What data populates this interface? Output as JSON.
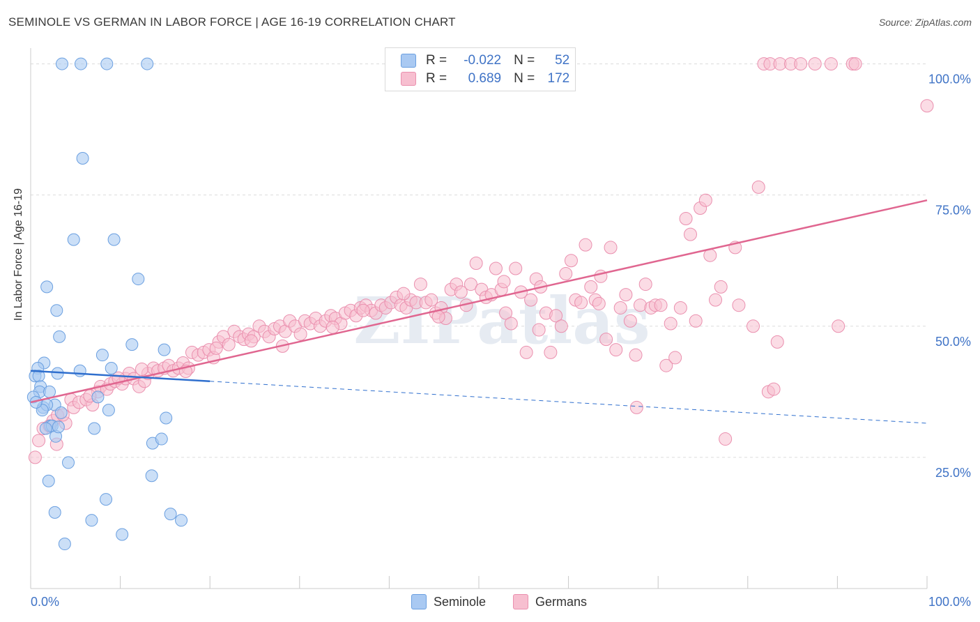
{
  "title": "SEMINOLE VS GERMAN IN LABOR FORCE | AGE 16-19 CORRELATION CHART",
  "source": "Source: ZipAtlas.com",
  "watermark": "ZIPatlas",
  "legend": {
    "rows": [
      {
        "name": "Seminole",
        "r_label": "R =",
        "r": "-0.022",
        "n_label": "N =",
        "n": "52"
      },
      {
        "name": "Germans",
        "r_label": "R =",
        "r": "0.689",
        "n_label": "N =",
        "n": "172"
      }
    ]
  },
  "colors": {
    "seminole_fill": "#a9c9f2",
    "seminole_stroke": "#6a9fe0",
    "seminole_line": "#2f6fce",
    "germans_fill": "#f7bfd0",
    "germans_stroke": "#ea8fae",
    "germans_line": "#e06690",
    "value_text": "#3f73c6"
  },
  "chart_data": {
    "type": "scatter",
    "title": "SEMINOLE VS GERMAN IN LABOR FORCE | AGE 16-19 CORRELATION CHART",
    "xlabel": "",
    "ylabel": "In Labor Force | Age 16-19",
    "xlim": [
      0,
      100
    ],
    "ylim": [
      0,
      103
    ],
    "x_tick_labels": [
      "0.0%",
      "100.0%"
    ],
    "y_tick_labels": [
      "25.0%",
      "50.0%",
      "75.0%",
      "100.0%"
    ],
    "y_ticks": [
      25,
      50,
      75,
      100
    ],
    "grid": true,
    "legend_position": "top-center",
    "series": [
      {
        "name": "Seminole",
        "r": -0.022,
        "n": 52,
        "trend": {
          "x": [
            0,
            20
          ],
          "y": [
            41.5,
            39.5
          ],
          "dashed_to_x": 100,
          "dashed_end_y": 31.5
        },
        "points": [
          [
            3.5,
            100
          ],
          [
            5.6,
            100
          ],
          [
            8.5,
            100
          ],
          [
            13,
            100
          ],
          [
            5.8,
            82
          ],
          [
            4.8,
            66.5
          ],
          [
            9.3,
            66.5
          ],
          [
            1.8,
            57.5
          ],
          [
            12,
            59
          ],
          [
            2.9,
            53
          ],
          [
            3.2,
            48
          ],
          [
            11.3,
            46.5
          ],
          [
            8,
            44.5
          ],
          [
            14.9,
            45.5
          ],
          [
            1.5,
            43
          ],
          [
            0.8,
            42
          ],
          [
            0.5,
            40.5
          ],
          [
            0.9,
            40.5
          ],
          [
            3,
            41
          ],
          [
            5.5,
            41.5
          ],
          [
            9,
            42
          ],
          [
            1.1,
            38.5
          ],
          [
            1,
            37.5
          ],
          [
            2.1,
            37.5
          ],
          [
            0.3,
            36.5
          ],
          [
            2.7,
            35
          ],
          [
            1.4,
            34.5
          ],
          [
            1.8,
            35
          ],
          [
            1.3,
            34
          ],
          [
            8.7,
            34
          ],
          [
            3.4,
            33.5
          ],
          [
            15.1,
            32.5
          ],
          [
            2.2,
            31
          ],
          [
            2.4,
            31
          ],
          [
            1.7,
            30.5
          ],
          [
            7.1,
            30.5
          ],
          [
            2.8,
            29
          ],
          [
            13.6,
            27.7
          ],
          [
            14.6,
            28.5
          ],
          [
            4.2,
            24
          ],
          [
            13.5,
            21.5
          ],
          [
            2,
            20.5
          ],
          [
            8.4,
            17
          ],
          [
            2.7,
            14.5
          ],
          [
            6.8,
            13
          ],
          [
            15.6,
            14.2
          ],
          [
            16.8,
            13
          ],
          [
            10.2,
            10.3
          ],
          [
            3.8,
            8.5
          ],
          [
            7.5,
            36.5
          ],
          [
            0.6,
            35.5
          ],
          [
            3.1,
            30.8
          ]
        ]
      },
      {
        "name": "Germans",
        "r": 0.689,
        "n": 172,
        "trend": {
          "x": [
            0,
            100
          ],
          "y": [
            35.5,
            74
          ]
        },
        "points": [
          [
            81.8,
            100
          ],
          [
            82.5,
            100
          ],
          [
            83.6,
            100
          ],
          [
            84.8,
            100
          ],
          [
            85.9,
            100
          ],
          [
            87.5,
            100
          ],
          [
            89.3,
            100
          ],
          [
            91.7,
            100
          ],
          [
            92,
            100
          ],
          [
            100,
            92
          ],
          [
            0.5,
            25
          ],
          [
            0.9,
            28.2
          ],
          [
            2.9,
            27.5
          ],
          [
            1.4,
            30.5
          ],
          [
            2.1,
            31
          ],
          [
            2.5,
            32
          ],
          [
            3,
            33
          ],
          [
            3.9,
            31.5
          ],
          [
            4.5,
            36
          ],
          [
            4.8,
            34.5
          ],
          [
            5.4,
            35.5
          ],
          [
            6.2,
            36
          ],
          [
            6.9,
            35
          ],
          [
            7.5,
            37.5
          ],
          [
            7.8,
            38.5
          ],
          [
            8.5,
            38
          ],
          [
            8.9,
            39
          ],
          [
            9.4,
            39.5
          ],
          [
            10.2,
            39
          ],
          [
            10.6,
            40
          ],
          [
            11,
            41
          ],
          [
            11.5,
            40
          ],
          [
            12.1,
            38.5
          ],
          [
            12.7,
            39.5
          ],
          [
            13.1,
            41
          ],
          [
            13.7,
            42
          ],
          [
            14.2,
            41.5
          ],
          [
            14.9,
            42
          ],
          [
            15.4,
            42.5
          ],
          [
            15.9,
            41.5
          ],
          [
            16.5,
            42
          ],
          [
            17,
            43
          ],
          [
            17.6,
            42
          ],
          [
            18,
            45
          ],
          [
            18.7,
            44.5
          ],
          [
            19.3,
            45
          ],
          [
            19.9,
            45.5
          ],
          [
            20.4,
            44
          ],
          [
            21,
            47
          ],
          [
            21.5,
            48
          ],
          [
            22.1,
            46.5
          ],
          [
            22.7,
            49
          ],
          [
            23.3,
            48
          ],
          [
            23.8,
            47.5
          ],
          [
            24.3,
            48.5
          ],
          [
            24.9,
            48
          ],
          [
            25.5,
            50
          ],
          [
            26.1,
            49
          ],
          [
            26.6,
            48
          ],
          [
            27.2,
            49.5
          ],
          [
            27.8,
            50
          ],
          [
            28.4,
            49
          ],
          [
            28.9,
            51
          ],
          [
            29.5,
            50
          ],
          [
            30.1,
            48.5
          ],
          [
            30.6,
            51
          ],
          [
            31.2,
            50.5
          ],
          [
            31.8,
            51.5
          ],
          [
            32.3,
            50
          ],
          [
            32.9,
            51
          ],
          [
            33.5,
            52
          ],
          [
            34,
            51.5
          ],
          [
            34.6,
            50.5
          ],
          [
            35.1,
            52.5
          ],
          [
            35.7,
            53
          ],
          [
            36.3,
            52
          ],
          [
            36.8,
            53.5
          ],
          [
            37.4,
            54
          ],
          [
            38,
            53
          ],
          [
            38.5,
            52.5
          ],
          [
            39.1,
            54
          ],
          [
            39.6,
            53.5
          ],
          [
            40.2,
            54.5
          ],
          [
            40.8,
            55.5
          ],
          [
            41.3,
            54
          ],
          [
            41.9,
            53.5
          ],
          [
            42.4,
            55
          ],
          [
            43,
            54.5
          ],
          [
            43.5,
            58
          ],
          [
            44.1,
            54.5
          ],
          [
            44.7,
            55
          ],
          [
            45.2,
            52.5
          ],
          [
            45.8,
            53.5
          ],
          [
            46.3,
            51.5
          ],
          [
            46.9,
            57
          ],
          [
            47.5,
            58
          ],
          [
            48,
            56.5
          ],
          [
            48.6,
            54
          ],
          [
            49.1,
            58
          ],
          [
            49.7,
            62
          ],
          [
            50.3,
            57
          ],
          [
            50.8,
            55.5
          ],
          [
            51.4,
            56
          ],
          [
            51.9,
            61
          ],
          [
            52.5,
            57
          ],
          [
            53,
            52.5
          ],
          [
            53.6,
            50.5
          ],
          [
            54.1,
            61
          ],
          [
            54.7,
            56.5
          ],
          [
            55.3,
            45
          ],
          [
            55.8,
            55
          ],
          [
            56.4,
            59
          ],
          [
            56.9,
            57.5
          ],
          [
            57.5,
            52.5
          ],
          [
            58,
            45
          ],
          [
            58.6,
            52
          ],
          [
            59.2,
            50
          ],
          [
            59.7,
            60
          ],
          [
            60.3,
            62.5
          ],
          [
            60.8,
            55
          ],
          [
            61.4,
            54.5
          ],
          [
            61.9,
            65.5
          ],
          [
            62.5,
            57.5
          ],
          [
            63,
            55
          ],
          [
            63.6,
            59.5
          ],
          [
            64.2,
            47.5
          ],
          [
            64.7,
            65
          ],
          [
            65.3,
            45.5
          ],
          [
            65.8,
            53.5
          ],
          [
            66.4,
            56
          ],
          [
            66.9,
            51
          ],
          [
            67.5,
            44.5
          ],
          [
            68,
            54
          ],
          [
            68.6,
            58
          ],
          [
            69.2,
            53.5
          ],
          [
            69.7,
            54
          ],
          [
            70.3,
            54
          ],
          [
            70.9,
            42.5
          ],
          [
            71.4,
            50.5
          ],
          [
            71.9,
            44
          ],
          [
            72.5,
            53.5
          ],
          [
            73.1,
            70.5
          ],
          [
            73.6,
            67.5
          ],
          [
            74.2,
            51
          ],
          [
            74.7,
            72.5
          ],
          [
            75.3,
            74
          ],
          [
            75.8,
            63.5
          ],
          [
            76.4,
            55
          ],
          [
            77,
            57.5
          ],
          [
            77.5,
            28.5
          ],
          [
            78.6,
            65
          ],
          [
            79,
            54
          ],
          [
            80.6,
            50
          ],
          [
            81.2,
            76.5
          ],
          [
            82.3,
            37.5
          ],
          [
            82.9,
            38
          ],
          [
            83.3,
            47
          ],
          [
            90.1,
            50
          ],
          [
            67.6,
            34.5
          ],
          [
            37.1,
            53
          ],
          [
            52.8,
            58.5
          ],
          [
            63.4,
            54.3
          ],
          [
            28.1,
            46.2
          ],
          [
            33.7,
            49.8
          ],
          [
            24.6,
            47.2
          ],
          [
            20.7,
            45.8
          ],
          [
            17.3,
            41.4
          ],
          [
            12.4,
            41.8
          ],
          [
            9.8,
            40.1
          ],
          [
            6.6,
            36.7
          ],
          [
            3.6,
            33.1
          ],
          [
            45.5,
            51.8
          ],
          [
            41.6,
            56.2
          ],
          [
            56.7,
            49.3
          ]
        ]
      }
    ]
  }
}
